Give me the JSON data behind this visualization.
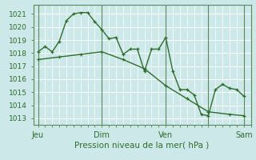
{
  "xlabel": "Pression niveau de la mer( hPa )",
  "bg_color": "#cce8e8",
  "grid_color": "#ffffff",
  "line_color": "#2d6e2d",
  "vline_color": "#5a8a5a",
  "ylim": [
    1012.5,
    1021.7
  ],
  "yticks": [
    1013,
    1014,
    1015,
    1016,
    1017,
    1018,
    1019,
    1020,
    1021
  ],
  "series1_x": [
    0,
    3,
    6,
    9,
    12,
    15,
    18,
    21,
    24,
    27,
    30,
    33,
    36,
    39,
    42,
    45,
    48,
    51,
    54,
    57,
    60,
    63,
    66,
    69,
    72,
    75,
    78,
    81,
    84,
    87
  ],
  "series1_y": [
    1018.1,
    1018.5,
    1018.1,
    1018.9,
    1020.5,
    1021.0,
    1021.1,
    1021.1,
    1020.4,
    1019.8,
    1019.1,
    1019.2,
    1017.9,
    1018.3,
    1018.3,
    1016.6,
    1018.3,
    1018.3,
    1019.2,
    1016.6,
    1015.2,
    1015.2,
    1014.8,
    1013.3,
    1013.2,
    1015.2,
    1015.6,
    1015.3,
    1015.2,
    1014.7
  ],
  "series2_x": [
    0,
    9,
    18,
    27,
    36,
    45,
    54,
    63,
    72,
    81,
    87
  ],
  "series2_y": [
    1017.5,
    1017.7,
    1017.9,
    1018.1,
    1017.5,
    1016.8,
    1015.5,
    1014.5,
    1013.5,
    1013.3,
    1013.2
  ],
  "xlim": [
    -2,
    90
  ],
  "xtick_positions": [
    0,
    27,
    54,
    72,
    87
  ],
  "xtick_labels": [
    "Jeu",
    "Dim",
    "Ven",
    "",
    "Sam"
  ],
  "vline_positions": [
    0,
    27,
    54,
    72,
    87
  ],
  "xlabel_fontsize": 7.5,
  "tick_fontsize": 7,
  "ytick_fontsize": 6.5
}
